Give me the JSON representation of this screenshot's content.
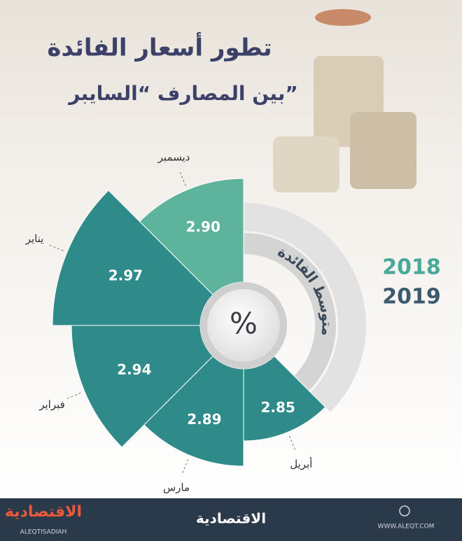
{
  "chart_data": {
    "type": "radial_bar",
    "title": "تطور أسعار الفائدة",
    "subtitle": "بين المصارف “السايبر”",
    "center_label": "%",
    "arc_label": "متوسط الفائدة",
    "categories": [
      "ديسمبر",
      "يناير",
      "فبراير",
      "مارس",
      "أبريل"
    ],
    "series": [
      {
        "name": "2018",
        "color": "#5db39c",
        "values": [
          2.9,
          null,
          null,
          null,
          null
        ],
        "value_labels": [
          "2.90",
          null,
          null,
          null,
          null
        ]
      },
      {
        "name": "2019",
        "color": "#2e8b8a",
        "values": [
          null,
          2.97,
          2.94,
          2.89,
          2.85
        ],
        "value_labels": [
          null,
          "2.97",
          "2.94",
          "2.89",
          "2.85"
        ]
      }
    ],
    "legend_colors": [
      "#4aa898",
      "#3c5a6e"
    ]
  },
  "footer": {
    "logo": "الاقتصادية",
    "logo_latin": "ALEQTISADIAH",
    "website": "WWW.ALEQT.COM"
  }
}
